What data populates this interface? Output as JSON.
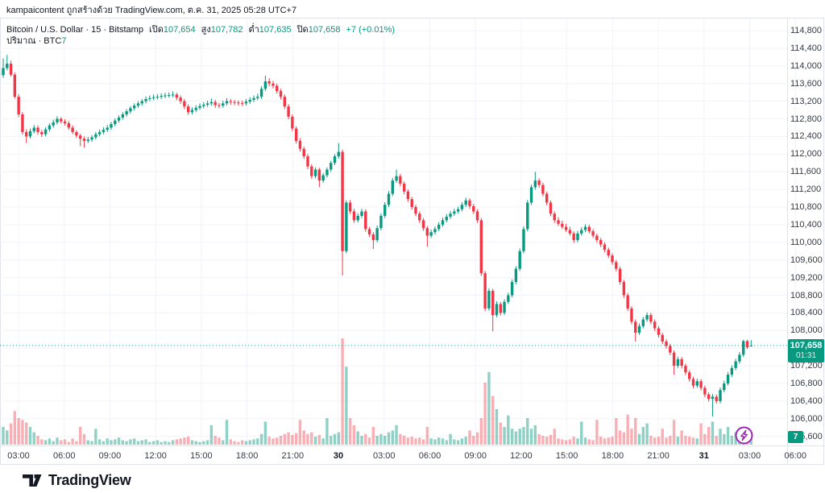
{
  "attribution": "kampaicontent ถูกสร้างด้วย TradingView.com, ต.ค. 31, 2025 05:28 UTC+7",
  "legend": {
    "symbol": "Bitcoin / U.S. Dollar · 15 · Bitstamp",
    "open_label": "เปิด",
    "open": "107,654",
    "high_label": "สูง",
    "high": "107,782",
    "low_label": "ต่ำ",
    "low": "107,635",
    "close_label": "ปิด",
    "close": "107,658",
    "change": "+7 (+0.01%)",
    "volume_label": "ปริมาณ · BTC",
    "volume": "7"
  },
  "price_badge": {
    "price": "107,658",
    "countdown": "01:31"
  },
  "volume_badge": {
    "value": "7"
  },
  "footer": {
    "logo_text": "TradingView"
  },
  "colors": {
    "up": "#089981",
    "down": "#f23645",
    "vol_up": "rgba(8,153,129,0.45)",
    "vol_down": "rgba(242,54,69,0.40)",
    "grid": "#f0f3fa",
    "border": "#e0e3eb",
    "axis_text": "#363a45",
    "badge_bg": "#089981",
    "boost": "#9c27b0",
    "logo": "#131722"
  },
  "chart_data": {
    "type": "candlestick",
    "title": "Bitcoin / U.S. Dollar · 15 · Bitstamp",
    "interval_minutes": 15,
    "volume_unit": "BTC",
    "last_price": 107658,
    "price_axis": {
      "max": 114800,
      "min": 105600,
      "step": 400,
      "labels": [
        "114,800",
        "114,400",
        "114,000",
        "113,600",
        "113,200",
        "112,800",
        "112,400",
        "112,000",
        "111,600",
        "111,200",
        "110,800",
        "110,400",
        "110,000",
        "109,600",
        "109,200",
        "108,800",
        "108,400",
        "108,000",
        "107,600",
        "107,200",
        "106,800",
        "106,400",
        "106,000",
        "105,600"
      ]
    },
    "time_axis": {
      "labels": [
        "03:00",
        "06:00",
        "09:00",
        "12:00",
        "15:00",
        "18:00",
        "21:00",
        "30",
        "03:00",
        "06:00",
        "09:00",
        "12:00",
        "15:00",
        "18:00",
        "21:00",
        "31",
        "03:00",
        "06:00"
      ],
      "bold_indices": [
        7,
        15
      ]
    },
    "candles": [
      [
        113790,
        114170,
        113730,
        113950,
        20
      ],
      [
        113950,
        114250,
        113900,
        114050,
        16
      ],
      [
        114050,
        114120,
        113760,
        113800,
        24
      ],
      [
        113800,
        113850,
        113260,
        113300,
        38
      ],
      [
        113300,
        113360,
        112840,
        112900,
        30
      ],
      [
        112900,
        112950,
        112440,
        112500,
        28
      ],
      [
        112500,
        112560,
        112250,
        112400,
        25
      ],
      [
        112400,
        112580,
        112350,
        112520,
        20
      ],
      [
        112520,
        112660,
        112470,
        112600,
        14
      ],
      [
        112600,
        112650,
        112440,
        112500,
        10
      ],
      [
        112500,
        112550,
        112390,
        112450,
        6
      ],
      [
        112450,
        112610,
        112400,
        112560,
        5
      ],
      [
        112560,
        112700,
        112510,
        112650,
        7
      ],
      [
        112650,
        112780,
        112600,
        112720,
        4
      ],
      [
        112720,
        112860,
        112670,
        112800,
        8
      ],
      [
        112800,
        112840,
        112690,
        112740,
        5
      ],
      [
        112740,
        112790,
        112650,
        112700,
        6
      ],
      [
        112700,
        112750,
        112550,
        112600,
        3
      ],
      [
        112600,
        112650,
        112450,
        112500,
        7
      ],
      [
        112500,
        112540,
        112370,
        112420,
        4
      ],
      [
        112420,
        112460,
        112180,
        112350,
        20
      ],
      [
        112350,
        112400,
        112150,
        112300,
        12
      ],
      [
        112300,
        112390,
        112250,
        112330,
        5
      ],
      [
        112330,
        112430,
        112280,
        112380,
        4
      ],
      [
        112380,
        112500,
        112330,
        112450,
        18
      ],
      [
        112450,
        112560,
        112400,
        112500,
        6
      ],
      [
        112500,
        112610,
        112450,
        112550,
        4
      ],
      [
        112550,
        112660,
        112500,
        112600,
        7
      ],
      [
        112600,
        112730,
        112550,
        112680,
        5
      ],
      [
        112680,
        112810,
        112630,
        112760,
        6
      ],
      [
        112760,
        112880,
        112710,
        112830,
        8
      ],
      [
        112830,
        112950,
        112780,
        112900,
        5
      ],
      [
        112900,
        113020,
        112850,
        112970,
        4
      ],
      [
        112970,
        113090,
        112920,
        113040,
        6
      ],
      [
        113040,
        113150,
        112990,
        113100,
        7
      ],
      [
        113100,
        113200,
        113050,
        113150,
        4
      ],
      [
        113150,
        113250,
        113100,
        113200,
        5
      ],
      [
        113200,
        113310,
        113150,
        113250,
        6
      ],
      [
        113250,
        113330,
        113200,
        113270,
        3
      ],
      [
        113270,
        113350,
        113220,
        113290,
        4
      ],
      [
        113290,
        113360,
        113240,
        113300,
        5
      ],
      [
        113300,
        113380,
        113250,
        113320,
        3
      ],
      [
        113320,
        113390,
        113270,
        113330,
        4
      ],
      [
        113330,
        113400,
        113280,
        113340,
        3
      ],
      [
        113340,
        113420,
        113290,
        113350,
        5
      ],
      [
        113350,
        113390,
        113220,
        113280,
        6
      ],
      [
        113280,
        113330,
        113140,
        113200,
        7
      ],
      [
        113200,
        113250,
        113020,
        113080,
        8
      ],
      [
        113080,
        113130,
        112890,
        112950,
        9
      ],
      [
        112950,
        113060,
        112900,
        113000,
        5
      ],
      [
        113000,
        113110,
        112950,
        113050,
        4
      ],
      [
        113050,
        113150,
        113000,
        113090,
        3
      ],
      [
        113090,
        113180,
        113040,
        113120,
        4
      ],
      [
        113120,
        113210,
        113070,
        113150,
        5
      ],
      [
        113150,
        113260,
        113100,
        113180,
        22
      ],
      [
        113180,
        113230,
        113050,
        113110,
        10
      ],
      [
        113110,
        113160,
        113040,
        113100,
        8
      ],
      [
        113100,
        113210,
        113050,
        113150,
        5
      ],
      [
        113150,
        113270,
        113100,
        113200,
        28
      ],
      [
        113200,
        113250,
        113120,
        113180,
        6
      ],
      [
        113180,
        113230,
        113110,
        113170,
        4
      ],
      [
        113170,
        113220,
        113100,
        113160,
        3
      ],
      [
        113160,
        113210,
        113090,
        113150,
        5
      ],
      [
        113150,
        113250,
        113100,
        113190,
        4
      ],
      [
        113190,
        113290,
        113140,
        113230,
        5
      ],
      [
        113230,
        113330,
        113180,
        113270,
        6
      ],
      [
        113270,
        113370,
        113220,
        113300,
        7
      ],
      [
        113300,
        113540,
        113250,
        113480,
        12
      ],
      [
        113480,
        113780,
        113430,
        113650,
        26
      ],
      [
        113650,
        113720,
        113540,
        113600,
        9
      ],
      [
        113600,
        113660,
        113490,
        113550,
        7
      ],
      [
        113550,
        113600,
        113370,
        113430,
        8
      ],
      [
        113430,
        113480,
        113240,
        113300,
        10
      ],
      [
        113300,
        113350,
        113020,
        113080,
        12
      ],
      [
        113080,
        113130,
        112790,
        112850,
        14
      ],
      [
        112850,
        112900,
        112520,
        112580,
        11
      ],
      [
        112580,
        112630,
        112240,
        112300,
        13
      ],
      [
        112300,
        112360,
        112060,
        112120,
        28
      ],
      [
        112120,
        112170,
        111890,
        111950,
        16
      ],
      [
        111950,
        112000,
        111660,
        111720,
        12
      ],
      [
        111720,
        111770,
        111440,
        111500,
        14
      ],
      [
        111500,
        111700,
        111450,
        111650,
        9
      ],
      [
        111650,
        111690,
        111250,
        111400,
        11
      ],
      [
        111400,
        111570,
        111350,
        111520,
        7
      ],
      [
        111520,
        111700,
        111470,
        111650,
        30
      ],
      [
        111650,
        111850,
        111600,
        111800,
        10
      ],
      [
        111800,
        112000,
        111750,
        111950,
        12
      ],
      [
        111950,
        112250,
        111900,
        112050,
        14
      ],
      [
        112050,
        112100,
        109250,
        109800,
        120
      ],
      [
        109800,
        110950,
        109750,
        110900,
        88
      ],
      [
        110900,
        110960,
        110640,
        110700,
        30
      ],
      [
        110700,
        110760,
        110440,
        110500,
        22
      ],
      [
        110500,
        110660,
        110450,
        110600,
        15
      ],
      [
        110600,
        110760,
        110550,
        110700,
        10
      ],
      [
        110700,
        110750,
        110240,
        110300,
        12
      ],
      [
        110300,
        110350,
        110120,
        110180,
        8
      ],
      [
        110180,
        110230,
        109850,
        110050,
        20
      ],
      [
        110050,
        110380,
        110000,
        110320,
        10
      ],
      [
        110320,
        110660,
        110270,
        110600,
        12
      ],
      [
        110600,
        110910,
        110550,
        110850,
        10
      ],
      [
        110850,
        111160,
        110800,
        111100,
        14
      ],
      [
        111100,
        111460,
        111050,
        111400,
        16
      ],
      [
        111400,
        111650,
        111350,
        111500,
        22
      ],
      [
        111500,
        111550,
        111270,
        111330,
        12
      ],
      [
        111330,
        111380,
        111090,
        111150,
        10
      ],
      [
        111150,
        111200,
        110920,
        110980,
        8
      ],
      [
        110980,
        111030,
        110740,
        110800,
        9
      ],
      [
        110800,
        110850,
        110590,
        110650,
        7
      ],
      [
        110650,
        110700,
        110440,
        110500,
        8
      ],
      [
        110500,
        110550,
        110260,
        110320,
        6
      ],
      [
        110320,
        110370,
        109900,
        110150,
        20
      ],
      [
        110150,
        110290,
        110100,
        110230,
        7
      ],
      [
        110230,
        110360,
        110180,
        110300,
        6
      ],
      [
        110300,
        110460,
        110250,
        110400,
        8
      ],
      [
        110400,
        110560,
        110350,
        110500,
        7
      ],
      [
        110500,
        110640,
        110450,
        110580,
        5
      ],
      [
        110580,
        110710,
        110530,
        110650,
        12
      ],
      [
        110650,
        110760,
        110600,
        110700,
        6
      ],
      [
        110700,
        110810,
        110650,
        110750,
        5
      ],
      [
        110750,
        110910,
        110700,
        110850,
        7
      ],
      [
        110850,
        111010,
        110800,
        110950,
        9
      ],
      [
        110950,
        111000,
        110760,
        110820,
        16
      ],
      [
        110820,
        110870,
        110640,
        110700,
        10
      ],
      [
        110700,
        110750,
        110440,
        110500,
        14
      ],
      [
        110500,
        110550,
        109240,
        109300,
        30
      ],
      [
        109300,
        109350,
        108440,
        108500,
        70
      ],
      [
        108500,
        108960,
        108450,
        108900,
        82
      ],
      [
        108900,
        108950,
        107980,
        108350,
        55
      ],
      [
        108350,
        108660,
        108300,
        108600,
        40
      ],
      [
        108600,
        108650,
        108340,
        108400,
        25
      ],
      [
        108400,
        108710,
        108350,
        108650,
        20
      ],
      [
        108650,
        108860,
        108600,
        108800,
        33
      ],
      [
        108800,
        109160,
        108750,
        109100,
        18
      ],
      [
        109100,
        109460,
        109050,
        109400,
        15
      ],
      [
        109400,
        109860,
        109350,
        109800,
        18
      ],
      [
        109800,
        110360,
        109750,
        110300,
        20
      ],
      [
        110300,
        110960,
        110250,
        110900,
        30
      ],
      [
        110900,
        111310,
        110850,
        111250,
        18
      ],
      [
        111250,
        111600,
        111200,
        111400,
        22
      ],
      [
        111400,
        111450,
        111240,
        111300,
        12
      ],
      [
        111300,
        111350,
        111040,
        111100,
        10
      ],
      [
        111100,
        111150,
        110840,
        110900,
        9
      ],
      [
        110900,
        110950,
        110590,
        110650,
        11
      ],
      [
        110650,
        110700,
        110440,
        110500,
        18
      ],
      [
        110500,
        110570,
        110370,
        110420,
        7
      ],
      [
        110420,
        110490,
        110300,
        110350,
        6
      ],
      [
        110350,
        110420,
        110230,
        110280,
        5
      ],
      [
        110280,
        110350,
        110150,
        110200,
        6
      ],
      [
        110200,
        110250,
        109990,
        110050,
        9
      ],
      [
        110050,
        110260,
        110000,
        110200,
        7
      ],
      [
        110200,
        110340,
        110150,
        110280,
        26
      ],
      [
        110280,
        110410,
        110230,
        110350,
        8
      ],
      [
        110350,
        110400,
        110200,
        110250,
        6
      ],
      [
        110250,
        110300,
        110100,
        110150,
        5
      ],
      [
        110150,
        110200,
        109990,
        110050,
        28
      ],
      [
        110050,
        110100,
        109890,
        109950,
        9
      ],
      [
        109950,
        110000,
        109770,
        109830,
        7
      ],
      [
        109830,
        109880,
        109640,
        109700,
        8
      ],
      [
        109700,
        109750,
        109490,
        109550,
        9
      ],
      [
        109550,
        109600,
        109340,
        109400,
        30
      ],
      [
        109400,
        109450,
        109040,
        109100,
        16
      ],
      [
        109100,
        109150,
        108740,
        108800,
        14
      ],
      [
        108800,
        108850,
        108440,
        108500,
        34
      ],
      [
        108500,
        108550,
        108140,
        108200,
        18
      ],
      [
        108200,
        108250,
        107750,
        107950,
        30
      ],
      [
        107950,
        108160,
        107900,
        108100,
        12
      ],
      [
        108100,
        108310,
        108050,
        108250,
        20
      ],
      [
        108250,
        108410,
        108200,
        108350,
        24
      ],
      [
        108350,
        108400,
        108140,
        108200,
        10
      ],
      [
        108200,
        108250,
        107990,
        108050,
        8
      ],
      [
        108050,
        108100,
        107840,
        107900,
        9
      ],
      [
        107900,
        107950,
        107690,
        107750,
        18
      ],
      [
        107750,
        107800,
        107590,
        107650,
        8
      ],
      [
        107650,
        107700,
        107440,
        107500,
        10
      ],
      [
        107500,
        107550,
        107000,
        107200,
        28
      ],
      [
        107200,
        107410,
        107150,
        107350,
        9
      ],
      [
        107350,
        107400,
        107140,
        107200,
        16
      ],
      [
        107200,
        107250,
        106990,
        107050,
        10
      ],
      [
        107050,
        107100,
        106840,
        106900,
        9
      ],
      [
        106900,
        106950,
        106690,
        106750,
        8
      ],
      [
        106750,
        106910,
        106700,
        106850,
        7
      ],
      [
        106850,
        106900,
        106640,
        106700,
        24
      ],
      [
        106700,
        106750,
        106490,
        106550,
        12
      ],
      [
        106550,
        106600,
        106390,
        106450,
        20
      ],
      [
        106450,
        106560,
        106050,
        106500,
        26
      ],
      [
        106500,
        106550,
        106340,
        106400,
        10
      ],
      [
        106400,
        106710,
        106350,
        106650,
        18
      ],
      [
        106650,
        106860,
        106600,
        106800,
        12
      ],
      [
        106800,
        107060,
        106750,
        107000,
        20
      ],
      [
        107000,
        107210,
        106950,
        107150,
        10
      ],
      [
        107150,
        107360,
        107100,
        107300,
        14
      ],
      [
        107300,
        107510,
        107250,
        107450,
        9
      ],
      [
        107450,
        107790,
        107400,
        107760,
        12
      ],
      [
        107760,
        107790,
        107580,
        107620,
        10
      ],
      [
        107654,
        107782,
        107635,
        107658,
        7
      ]
    ]
  }
}
